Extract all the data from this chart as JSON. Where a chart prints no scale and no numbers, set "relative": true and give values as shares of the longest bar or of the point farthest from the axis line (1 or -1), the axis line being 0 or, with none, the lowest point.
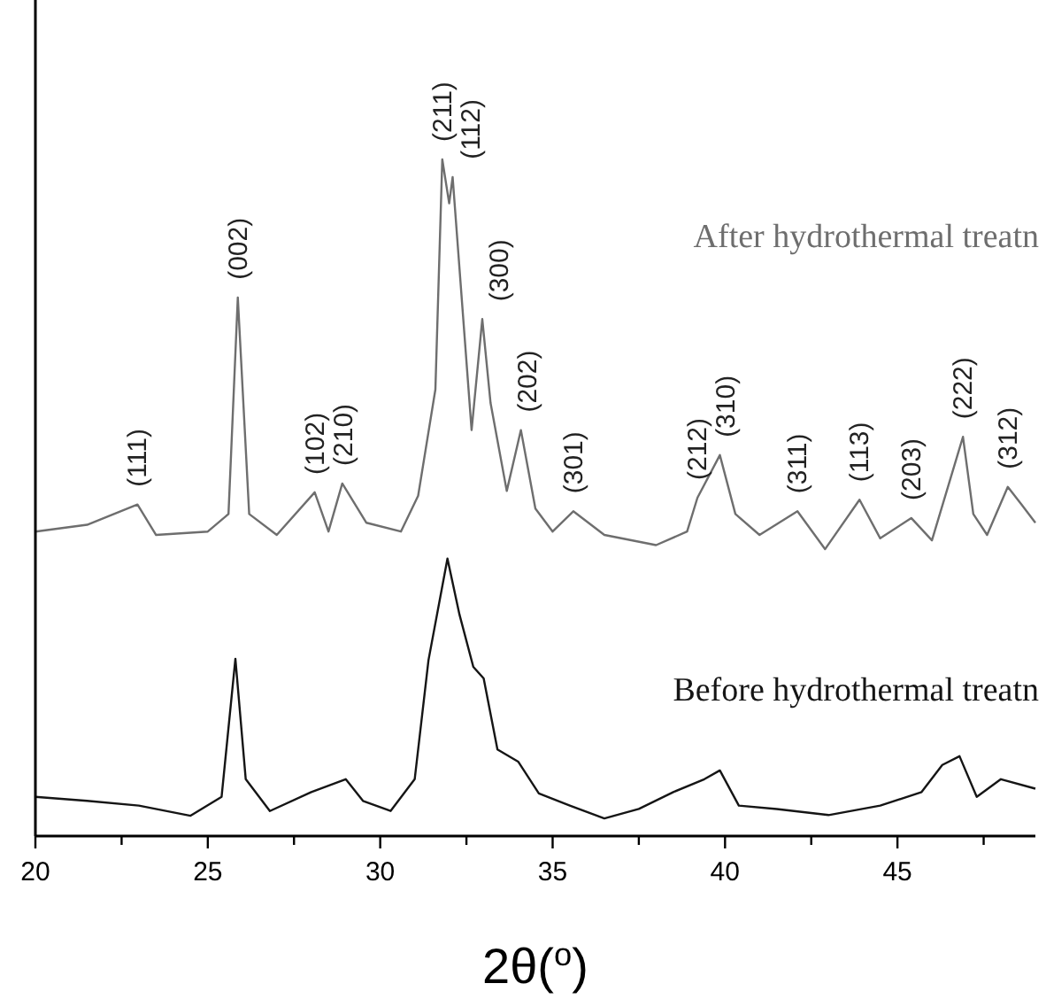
{
  "chart_data": {
    "type": "line",
    "relative": true,
    "xlabel": "2θ($^{o}$)",
    "xlim": [
      20,
      49
    ],
    "xticks": [
      20,
      {
        "value": 22.5,
        "label": null
      },
      25,
      {
        "value": 27.5,
        "label": null
      },
      30,
      {
        "value": 32.5,
        "label": null
      },
      35,
      {
        "value": 37.5,
        "label": null
      },
      40,
      {
        "value": 42.5,
        "label": null
      },
      45,
      {
        "value": 47.5,
        "label": null
      }
    ],
    "tick_labels": "x",
    "grid": false,
    "marker": "none",
    "line_style": "solid",
    "series": [
      {
        "name": "After hydrothermal treatn",
        "color": "#6e6e6e",
        "x": [
          20,
          21.5,
          22.96,
          23.5,
          25,
          25.6,
          25.87,
          26.2,
          27,
          28.1,
          28.5,
          28.9,
          29.6,
          30.6,
          31.1,
          31.6,
          31.8,
          32,
          32.1,
          32.65,
          32.96,
          33.2,
          33.67,
          34.08,
          34.5,
          35,
          35.6,
          36.5,
          38,
          38.9,
          39.2,
          39.85,
          40.3,
          41,
          42.1,
          42.9,
          43.9,
          44.5,
          45.4,
          46,
          46.9,
          47.2,
          47.6,
          48.2,
          48.6,
          49
        ],
        "values": [
          0.45,
          0.46,
          0.49,
          0.445,
          0.45,
          0.476,
          0.796,
          0.476,
          0.445,
          0.508,
          0.45,
          0.521,
          0.463,
          0.45,
          0.503,
          0.66,
          1,
          0.935,
          0.974,
          0.6,
          0.764,
          0.64,
          0.51,
          0.6,
          0.484,
          0.45,
          0.48,
          0.445,
          0.43,
          0.45,
          0.5,
          0.563,
          0.476,
          0.445,
          0.48,
          0.424,
          0.497,
          0.44,
          0.47,
          0.437,
          0.59,
          0.476,
          0.445,
          0.516,
          0.49,
          0.463
        ]
      },
      {
        "name": "Before hydrothermal treatn",
        "color": "#151515",
        "x": [
          20,
          21.5,
          23,
          24.5,
          25.4,
          25.8,
          26.1,
          26.8,
          28,
          29,
          29.5,
          30.3,
          31,
          31.4,
          31.95,
          32.3,
          32.7,
          33,
          33.4,
          34,
          34.6,
          35.5,
          36.5,
          37.5,
          38.5,
          39.4,
          39.85,
          40.4,
          41.5,
          43,
          44.5,
          45.7,
          46.3,
          46.8,
          47.3,
          48,
          49
        ],
        "values": [
          0.058,
          0.052,
          0.045,
          0.03,
          0.058,
          0.262,
          0.084,
          0.037,
          0.065,
          0.084,
          0.052,
          0.037,
          0.084,
          0.26,
          0.41,
          0.327,
          0.25,
          0.233,
          0.128,
          0.11,
          0.063,
          0.045,
          0.026,
          0.04,
          0.065,
          0.084,
          0.097,
          0.045,
          0.04,
          0.031,
          0.045,
          0.065,
          0.105,
          0.118,
          0.058,
          0.084,
          0.07
        ]
      }
    ],
    "annotations": [
      {
        "text": "(111)",
        "x": 22.96,
        "y": 0.49
      },
      {
        "text": "(002)",
        "x": 25.87,
        "y": 0.796
      },
      {
        "text": "(102)",
        "x": 28.1,
        "y": 0.508
      },
      {
        "text": "(210)",
        "x": 28.9,
        "y": 0.521
      },
      {
        "text": "(211)",
        "x": 31.8,
        "y": 1
      },
      {
        "text": "(112)",
        "x": 32.1,
        "y": 0.974
      },
      {
        "text": "(300)",
        "x": 32.96,
        "y": 0.764
      },
      {
        "text": "(202)",
        "x": 34.08,
        "y": 0.6
      },
      {
        "text": "(301)",
        "x": 35.6,
        "y": 0.48
      },
      {
        "text": "(212)",
        "x": 39.2,
        "y": 0.5
      },
      {
        "text": "(310)",
        "x": 39.85,
        "y": 0.563
      },
      {
        "text": "(311)",
        "x": 42.1,
        "y": 0.48
      },
      {
        "text": "(113)",
        "x": 43.9,
        "y": 0.497
      },
      {
        "text": "(203)",
        "x": 45.4,
        "y": 0.47
      },
      {
        "text": "(222)",
        "x": 46.9,
        "y": 0.59
      },
      {
        "text": "(312)",
        "x": 48.2,
        "y": 0.516
      }
    ]
  }
}
